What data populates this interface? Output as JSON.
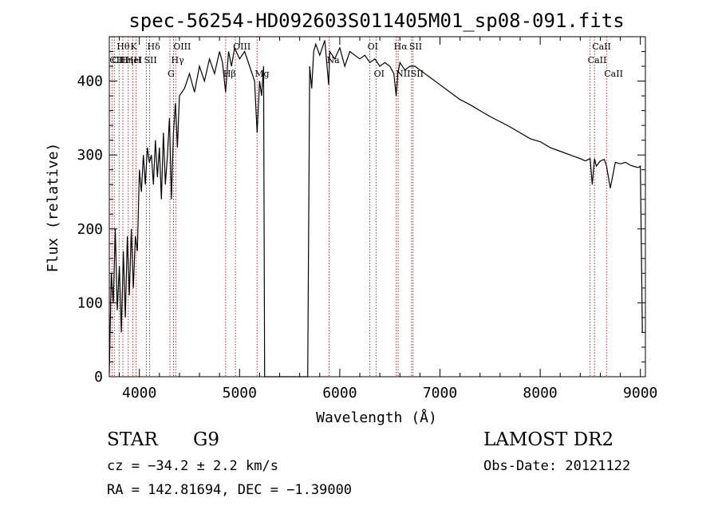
{
  "chart_data": {
    "type": "line",
    "title": "spec-56254-HD092603S011405M01_sp08-091.fits",
    "xlabel": "Wavelength (Å)",
    "ylabel": "Flux (relative)",
    "xlim": [
      3700,
      9050
    ],
    "ylim": [
      0,
      460
    ],
    "xticks": [
      4000,
      5000,
      6000,
      7000,
      8000,
      9000
    ],
    "yticks": [
      0,
      100,
      200,
      300,
      400
    ],
    "grid": false,
    "series": [
      {
        "color": "#000000",
        "x": [
          3700,
          3720,
          3740,
          3760,
          3780,
          3800,
          3820,
          3840,
          3860,
          3880,
          3900,
          3920,
          3940,
          3960,
          3980,
          4000,
          4020,
          4040,
          4060,
          4080,
          4100,
          4120,
          4140,
          4160,
          4180,
          4200,
          4220,
          4240,
          4260,
          4280,
          4300,
          4320,
          4340,
          4360,
          4380,
          4400,
          4450,
          4500,
          4550,
          4600,
          4650,
          4700,
          4750,
          4800,
          4830,
          4861,
          4890,
          4920,
          4950,
          5000,
          5050,
          5100,
          5150,
          5175,
          5200,
          5220,
          5240,
          5250,
          5300,
          5400,
          5500,
          5600,
          5680,
          5700,
          5720,
          5740,
          5760,
          5800,
          5850,
          5889,
          5900,
          5950,
          6000,
          6050,
          6100,
          6150,
          6200,
          6250,
          6300,
          6350,
          6400,
          6450,
          6500,
          6540,
          6563,
          6580,
          6600,
          6650,
          6700,
          6750,
          6800,
          6900,
          7000,
          7100,
          7200,
          7300,
          7400,
          7500,
          7600,
          7700,
          7800,
          7900,
          8000,
          8100,
          8200,
          8300,
          8400,
          8450,
          8498,
          8520,
          8542,
          8560,
          8600,
          8640,
          8662,
          8700,
          8750,
          8800,
          8850,
          8900,
          8950,
          8980,
          9000,
          9020
        ],
        "y": [
          5,
          140,
          100,
          200,
          90,
          150,
          60,
          170,
          80,
          190,
          110,
          200,
          120,
          190,
          170,
          280,
          250,
          300,
          260,
          310,
          290,
          300,
          260,
          320,
          270,
          310,
          240,
          330,
          260,
          300,
          350,
          240,
          330,
          370,
          310,
          380,
          390,
          410,
          385,
          420,
          400,
          430,
          410,
          440,
          425,
          385,
          440,
          420,
          445,
          430,
          440,
          420,
          400,
          330,
          400,
          380,
          420,
          0,
          0,
          0,
          0,
          0,
          0,
          420,
          390,
          440,
          450,
          435,
          455,
          395,
          440,
          430,
          445,
          420,
          440,
          435,
          430,
          435,
          425,
          430,
          420,
          425,
          420,
          410,
          380,
          410,
          425,
          415,
          420,
          420,
          415,
          405,
          395,
          385,
          375,
          368,
          360,
          352,
          345,
          338,
          330,
          322,
          318,
          310,
          305,
          300,
          295,
          292,
          295,
          260,
          295,
          285,
          292,
          294,
          285,
          255,
          290,
          288,
          290,
          286,
          284,
          283,
          285,
          60
        ]
      }
    ],
    "lines": [
      {
        "label": "Hθ",
        "x": 3798
      },
      {
        "label": "K",
        "x": 3934
      },
      {
        "label": "Hδ",
        "x": 4102
      },
      {
        "label": "OIII",
        "x": 4363
      },
      {
        "label": "OIII",
        "x": 4959
      },
      {
        "label": "OI",
        "x": 6300
      },
      {
        "label": "Hα",
        "x": 6563
      },
      {
        "label": "SII",
        "x": 6716
      },
      {
        "label": "CaII",
        "x": 8542
      },
      {
        "label": "CII",
        "x": 3727
      },
      {
        "label": "HeI",
        "x": 3889
      },
      {
        "label": "SII",
        "x": 4070
      },
      {
        "label": "Hγ",
        "x": 4341
      },
      {
        "label": "Na",
        "x": 5893
      },
      {
        "label": "CaII",
        "x": 8498
      },
      {
        "label": "CII",
        "x": 3750
      },
      {
        "label": "Hη",
        "x": 3835
      },
      {
        "label": "H",
        "x": 3968
      },
      {
        "label": "G",
        "x": 4305
      },
      {
        "label": "Hβ",
        "x": 4861
      },
      {
        "label": "Mg",
        "x": 5175
      },
      {
        "label": "OI",
        "x": 6364
      },
      {
        "label": "NII",
        "x": 6583
      },
      {
        "label": "SII",
        "x": 6731
      },
      {
        "label": "CaII",
        "x": 8662
      }
    ]
  },
  "info": {
    "object_class": "STAR",
    "subclass": "G9",
    "survey": "LAMOST DR2",
    "redshift": "cz = −34.2 ± 2.2 km/s",
    "obs_date": "Obs-Date: 20121122",
    "coords": "RA = 142.81694, DEC =  −1.39000"
  }
}
